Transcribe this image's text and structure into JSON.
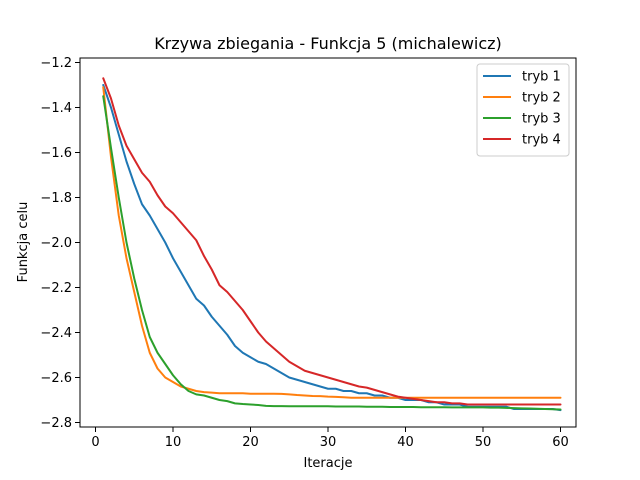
{
  "chart_data": {
    "type": "line",
    "title": "Krzywa zbiegania - Funkcja 5 (michalewicz)",
    "xlabel": "Iteracje",
    "ylabel": "Funkcja celu",
    "xlim": [
      -2,
      62
    ],
    "ylim": [
      -2.82,
      -1.18
    ],
    "xticks": [
      0,
      10,
      20,
      30,
      40,
      50,
      60
    ],
    "yticks": [
      -2.8,
      -2.6,
      -2.4,
      -2.2,
      -2.0,
      -1.8,
      -1.6,
      -1.4,
      -1.2
    ],
    "xtick_labels": [
      "0",
      "10",
      "20",
      "30",
      "40",
      "50",
      "60"
    ],
    "ytick_labels": [
      "−2.8",
      "−2.6",
      "−2.4",
      "−2.2",
      "−2.0",
      "−1.8",
      "−1.6",
      "−1.4",
      "−1.2"
    ],
    "grid": false,
    "legend_position": "top-right",
    "x": [
      1,
      2,
      3,
      4,
      5,
      6,
      7,
      8,
      9,
      10,
      11,
      12,
      13,
      14,
      15,
      16,
      17,
      18,
      19,
      20,
      21,
      22,
      23,
      24,
      25,
      26,
      27,
      28,
      29,
      30,
      31,
      32,
      33,
      34,
      35,
      36,
      37,
      38,
      39,
      40,
      41,
      42,
      43,
      44,
      45,
      46,
      47,
      48,
      49,
      50,
      51,
      52,
      53,
      54,
      55,
      56,
      57,
      58,
      59,
      60
    ],
    "series": [
      {
        "name": "tryb 1",
        "color": "#1f77b4",
        "values": [
          -1.3,
          -1.4,
          -1.52,
          -1.64,
          -1.74,
          -1.83,
          -1.88,
          -1.94,
          -2.0,
          -2.07,
          -2.13,
          -2.19,
          -2.25,
          -2.28,
          -2.33,
          -2.37,
          -2.41,
          -2.46,
          -2.49,
          -2.51,
          -2.53,
          -2.54,
          -2.56,
          -2.58,
          -2.6,
          -2.61,
          -2.62,
          -2.63,
          -2.64,
          -2.65,
          -2.65,
          -2.66,
          -2.66,
          -2.67,
          -2.67,
          -2.68,
          -2.68,
          -2.69,
          -2.69,
          -2.7,
          -2.7,
          -2.7,
          -2.71,
          -2.71,
          -2.72,
          -2.72,
          -2.72,
          -2.73,
          -2.73,
          -2.73,
          -2.73,
          -2.73,
          -2.73,
          -2.74,
          -2.74,
          -2.74,
          -2.74,
          -2.74,
          -2.74,
          -2.745
        ]
      },
      {
        "name": "tryb 2",
        "color": "#ff7f0e",
        "values": [
          -1.31,
          -1.62,
          -1.88,
          -2.07,
          -2.22,
          -2.37,
          -2.49,
          -2.56,
          -2.6,
          -2.62,
          -2.64,
          -2.65,
          -2.66,
          -2.665,
          -2.667,
          -2.67,
          -2.67,
          -2.67,
          -2.67,
          -2.672,
          -2.672,
          -2.672,
          -2.672,
          -2.673,
          -2.675,
          -2.678,
          -2.68,
          -2.682,
          -2.683,
          -2.685,
          -2.686,
          -2.688,
          -2.69,
          -2.69,
          -2.69,
          -2.69,
          -2.69,
          -2.69,
          -2.69,
          -2.69,
          -2.69,
          -2.69,
          -2.69,
          -2.69,
          -2.69,
          -2.69,
          -2.69,
          -2.69,
          -2.69,
          -2.69,
          -2.69,
          -2.69,
          -2.69,
          -2.69,
          -2.69,
          -2.69,
          -2.69,
          -2.69,
          -2.69,
          -2.69
        ]
      },
      {
        "name": "tryb 3",
        "color": "#2ca02c",
        "values": [
          -1.35,
          -1.58,
          -1.8,
          -2.0,
          -2.16,
          -2.3,
          -2.42,
          -2.49,
          -2.54,
          -2.59,
          -2.63,
          -2.66,
          -2.675,
          -2.68,
          -2.69,
          -2.7,
          -2.705,
          -2.715,
          -2.718,
          -2.72,
          -2.722,
          -2.726,
          -2.727,
          -2.727,
          -2.728,
          -2.728,
          -2.728,
          -2.728,
          -2.728,
          -2.728,
          -2.729,
          -2.729,
          -2.729,
          -2.729,
          -2.73,
          -2.73,
          -2.73,
          -2.731,
          -2.731,
          -2.731,
          -2.731,
          -2.732,
          -2.732,
          -2.732,
          -2.732,
          -2.733,
          -2.733,
          -2.733,
          -2.733,
          -2.733,
          -2.734,
          -2.734,
          -2.735,
          -2.736,
          -2.737,
          -2.738,
          -2.739,
          -2.74,
          -2.741,
          -2.742
        ]
      },
      {
        "name": "tryb 4",
        "color": "#d62728",
        "values": [
          -1.27,
          -1.36,
          -1.48,
          -1.57,
          -1.63,
          -1.69,
          -1.73,
          -1.79,
          -1.84,
          -1.87,
          -1.91,
          -1.95,
          -1.99,
          -2.06,
          -2.12,
          -2.19,
          -2.22,
          -2.26,
          -2.3,
          -2.35,
          -2.4,
          -2.44,
          -2.47,
          -2.5,
          -2.53,
          -2.55,
          -2.57,
          -2.58,
          -2.59,
          -2.6,
          -2.61,
          -2.62,
          -2.63,
          -2.64,
          -2.645,
          -2.655,
          -2.665,
          -2.675,
          -2.685,
          -2.69,
          -2.695,
          -2.7,
          -2.705,
          -2.71,
          -2.71,
          -2.715,
          -2.715,
          -2.72,
          -2.72,
          -2.72,
          -2.72,
          -2.72,
          -2.72,
          -2.72,
          -2.72,
          -2.72,
          -2.72,
          -2.72,
          -2.72,
          -2.72
        ]
      }
    ]
  }
}
